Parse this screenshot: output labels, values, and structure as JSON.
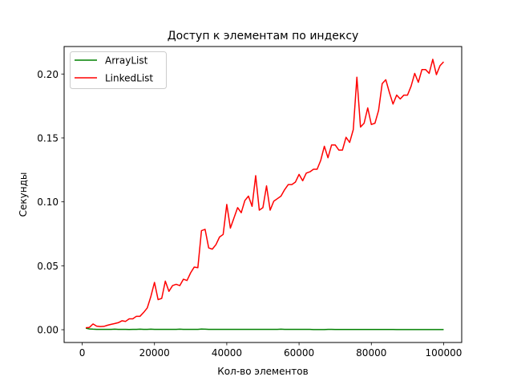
{
  "chart_data": {
    "type": "line",
    "title": "Доступ к элементам по индексу",
    "xlabel": "Кол-во элементов",
    "ylabel": "Секунды",
    "xlim": [
      -5000,
      105000
    ],
    "ylim": [
      -0.01,
      0.2215
    ],
    "xticks": [
      0,
      20000,
      40000,
      60000,
      80000,
      100000
    ],
    "xtick_labels": [
      "0",
      "20000",
      "40000",
      "60000",
      "80000",
      "100000"
    ],
    "yticks": [
      0.0,
      0.05,
      0.1,
      0.15,
      0.2
    ],
    "ytick_labels": [
      "0.00",
      "0.05",
      "0.10",
      "0.15",
      "0.20"
    ],
    "grid": false,
    "legend_position": "upper-left",
    "x": [
      1000,
      2000,
      3000,
      4000,
      5000,
      6000,
      7000,
      8000,
      9000,
      10000,
      11000,
      12000,
      13000,
      14000,
      15000,
      16000,
      17000,
      18000,
      19000,
      20000,
      21000,
      22000,
      23000,
      24000,
      25000,
      26000,
      27000,
      28000,
      29000,
      30000,
      31000,
      32000,
      33000,
      34000,
      35000,
      36000,
      37000,
      38000,
      39000,
      40000,
      41000,
      42000,
      43000,
      44000,
      45000,
      46000,
      47000,
      48000,
      49000,
      50000,
      51000,
      52000,
      53000,
      54000,
      55000,
      56000,
      57000,
      58000,
      59000,
      60000,
      61000,
      62000,
      63000,
      64000,
      65000,
      66000,
      67000,
      68000,
      69000,
      70000,
      71000,
      72000,
      73000,
      74000,
      75000,
      76000,
      77000,
      78000,
      79000,
      80000,
      81000,
      82000,
      83000,
      84000,
      85000,
      86000,
      87000,
      88000,
      89000,
      90000,
      91000,
      92000,
      93000,
      94000,
      95000,
      96000,
      97000,
      98000,
      99000,
      100000
    ],
    "series": [
      {
        "name": "ArrayList",
        "color": "#008000",
        "values": [
          0.0012,
          0.0006,
          0.0004,
          0.0003,
          0.0003,
          0.0003,
          0.0003,
          0.0003,
          0.0004,
          0.0003,
          0.0003,
          0.0003,
          0.0002,
          0.0003,
          0.0003,
          0.0004,
          0.0003,
          0.0003,
          0.0004,
          0.0003,
          0.0003,
          0.0003,
          0.0003,
          0.0003,
          0.0003,
          0.0003,
          0.0004,
          0.0003,
          0.0003,
          0.0003,
          0.0003,
          0.0003,
          0.0005,
          0.0004,
          0.0003,
          0.0003,
          0.0003,
          0.0003,
          0.0003,
          0.0003,
          0.0003,
          0.0003,
          0.0003,
          0.0003,
          0.0003,
          0.0003,
          0.0003,
          0.0003,
          0.0003,
          0.0003,
          0.0003,
          0.0003,
          0.0003,
          0.0003,
          0.0004,
          0.0003,
          0.0003,
          0.0003,
          0.0003,
          0.0003,
          0.0003,
          0.0003,
          0.0003,
          0.0001,
          0.0001,
          0.0001,
          0.0001,
          0.0003,
          0.0003,
          0.0002,
          0.0002,
          0.0002,
          0.0002,
          0.0002,
          0.0002,
          0.0002,
          0.0002,
          0.0002,
          0.0002,
          0.0002,
          0.0002,
          0.0002,
          0.0002,
          0.0002,
          0.0002,
          0.0002,
          0.0001,
          0.0001,
          0.0001,
          0.0001,
          0.0001,
          0.0001,
          0.0001,
          0.0001,
          0.0001,
          0.0001,
          0.0001,
          0.0001,
          0.0001,
          0.0001
        ]
      },
      {
        "name": "LinkedList",
        "color": "#ff0000",
        "values": [
          0.0015,
          0.0018,
          0.0045,
          0.0028,
          0.0025,
          0.0026,
          0.0035,
          0.0042,
          0.0048,
          0.0055,
          0.007,
          0.0065,
          0.0085,
          0.0085,
          0.0105,
          0.0105,
          0.0135,
          0.017,
          0.026,
          0.037,
          0.0235,
          0.0245,
          0.038,
          0.03,
          0.0345,
          0.0355,
          0.0345,
          0.0395,
          0.0385,
          0.0445,
          0.049,
          0.0485,
          0.0775,
          0.0785,
          0.064,
          0.063,
          0.0665,
          0.0725,
          0.0745,
          0.098,
          0.0795,
          0.0875,
          0.0955,
          0.0915,
          0.101,
          0.1045,
          0.0965,
          0.1205,
          0.0935,
          0.0955,
          0.1125,
          0.0935,
          0.1005,
          0.1025,
          0.1045,
          0.1095,
          0.1135,
          0.1135,
          0.1155,
          0.1215,
          0.1165,
          0.1225,
          0.1235,
          0.1255,
          0.1255,
          0.1325,
          0.1435,
          0.1345,
          0.1445,
          0.1445,
          0.1405,
          0.1405,
          0.1505,
          0.1465,
          0.1565,
          0.1975,
          0.1585,
          0.1615,
          0.1735,
          0.1605,
          0.1615,
          0.1715,
          0.1925,
          0.1955,
          0.1855,
          0.1765,
          0.1835,
          0.1805,
          0.1835,
          0.1835,
          0.1905,
          0.2005,
          0.1935,
          0.2035,
          0.2035,
          0.2005,
          0.2115,
          0.1995,
          0.2065,
          0.2095
        ]
      }
    ]
  }
}
